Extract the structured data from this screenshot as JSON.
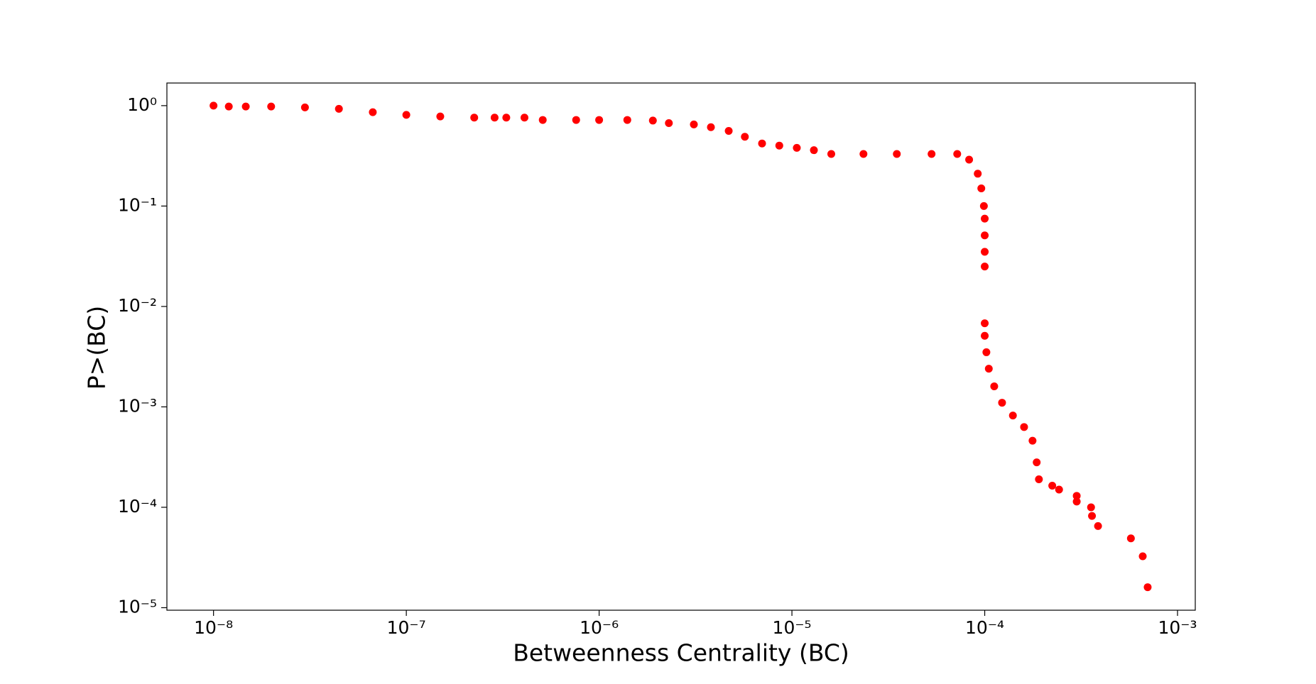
{
  "chart_data": {
    "type": "scatter",
    "xlabel": "Betweenness Centrality (BC)",
    "ylabel": "P>(BC)",
    "color": "#ff0000",
    "xscale": "log",
    "yscale": "log",
    "xlim": [
      5.73e-09,
      0.001236
    ],
    "ylim": [
      9.44e-06,
      1.68
    ],
    "xticks": [
      {
        "value": 1e-08,
        "label": "10⁻⁸"
      },
      {
        "value": 1e-07,
        "label": "10⁻⁷"
      },
      {
        "value": 1e-06,
        "label": "10⁻⁶"
      },
      {
        "value": 1e-05,
        "label": "10⁻⁵"
      },
      {
        "value": 0.0001,
        "label": "10⁻⁴"
      },
      {
        "value": 0.001,
        "label": "10⁻³"
      }
    ],
    "yticks": [
      {
        "value": 1,
        "label": "10⁰"
      },
      {
        "value": 0.1,
        "label": "10⁻¹"
      },
      {
        "value": 0.01,
        "label": "10⁻²"
      },
      {
        "value": 0.001,
        "label": "10⁻³"
      },
      {
        "value": 0.0001,
        "label": "10⁻⁴"
      },
      {
        "value": 1e-05,
        "label": "10⁻⁵"
      }
    ],
    "x": [
      1e-08,
      1.2e-08,
      1.47e-08,
      1.99e-08,
      2.98e-08,
      4.47e-08,
      6.7e-08,
      1e-07,
      1.5e-07,
      2.25e-07,
      2.87e-07,
      3.3e-07,
      4.1e-07,
      5.1e-07,
      7.6e-07,
      1e-06,
      1.4e-06,
      1.9e-06,
      2.3e-06,
      3.1e-06,
      3.8e-06,
      4.7e-06,
      5.7e-06,
      7e-06,
      8.6e-06,
      1.06e-05,
      1.3e-05,
      1.6e-05,
      2.35e-05,
      3.5e-05,
      5.3e-05,
      7.2e-05,
      8.3e-05,
      9.2e-05,
      9.6e-05,
      9.9e-05,
      0.0001,
      0.0001,
      0.0001,
      0.0001,
      0.0001,
      0.0001,
      0.000102,
      0.000105,
      0.000112,
      0.000123,
      0.00014,
      0.00016,
      0.000177,
      0.000186,
      0.000191,
      0.000224,
      0.000243,
      0.0003,
      0.0003,
      0.000356,
      0.00036,
      0.000387,
      0.000573,
      0.00066,
      0.0007
    ],
    "y": [
      1.0,
      0.98,
      0.98,
      0.98,
      0.96,
      0.93,
      0.86,
      0.81,
      0.78,
      0.76,
      0.76,
      0.76,
      0.76,
      0.72,
      0.72,
      0.72,
      0.72,
      0.71,
      0.67,
      0.65,
      0.61,
      0.56,
      0.49,
      0.42,
      0.4,
      0.38,
      0.36,
      0.33,
      0.33,
      0.33,
      0.33,
      0.33,
      0.29,
      0.21,
      0.15,
      0.1,
      0.075,
      0.051,
      0.035,
      0.025,
      0.0068,
      0.0051,
      0.0035,
      0.0024,
      0.0016,
      0.0011,
      0.00082,
      0.00063,
      0.00046,
      0.00028,
      0.00019,
      0.000164,
      0.00015,
      0.00013,
      0.000114,
      0.0001,
      8.2e-05,
      6.5e-05,
      4.9e-05,
      3.25e-05,
      1.6e-05
    ]
  }
}
